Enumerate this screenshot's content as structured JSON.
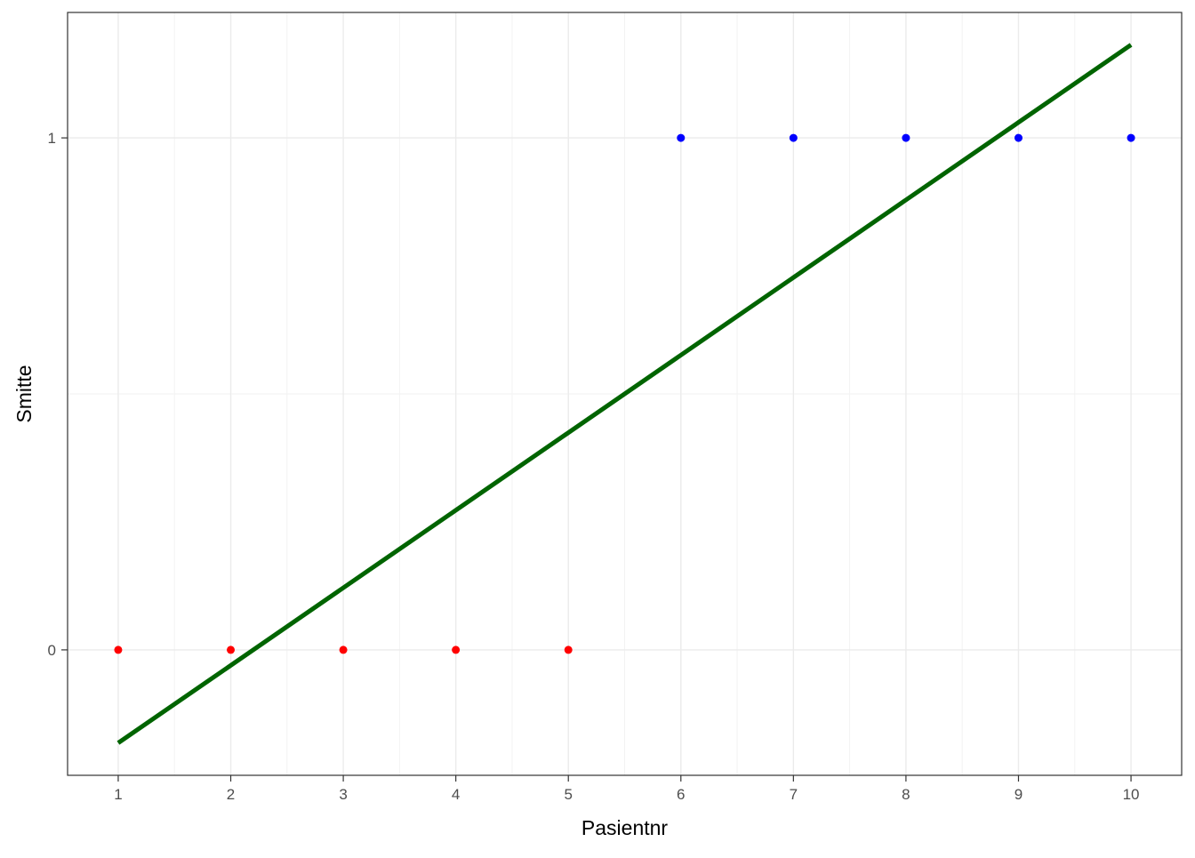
{
  "chart_data": {
    "type": "scatter",
    "title": "",
    "xlabel": "Pasientnr",
    "ylabel": "Smitte",
    "xlim": [
      0.55,
      10.45
    ],
    "ylim": [
      -0.245,
      1.245
    ],
    "x_ticks": [
      {
        "value": 1,
        "label": "1"
      },
      {
        "value": 2,
        "label": "2"
      },
      {
        "value": 3,
        "label": "3"
      },
      {
        "value": 4,
        "label": "4"
      },
      {
        "value": 5,
        "label": "5"
      },
      {
        "value": 6,
        "label": "6"
      },
      {
        "value": 7,
        "label": "7"
      },
      {
        "value": 8,
        "label": "8"
      },
      {
        "value": 9,
        "label": "9"
      },
      {
        "value": 10,
        "label": "10"
      }
    ],
    "y_ticks": [
      {
        "value": 0,
        "label": "0"
      },
      {
        "value": 1,
        "label": "1"
      }
    ],
    "grid": true,
    "legend": "none",
    "points": [
      {
        "x": 1,
        "y": 0,
        "color": "#ff0000"
      },
      {
        "x": 2,
        "y": 0,
        "color": "#ff0000"
      },
      {
        "x": 3,
        "y": 0,
        "color": "#ff0000"
      },
      {
        "x": 4,
        "y": 0,
        "color": "#ff0000"
      },
      {
        "x": 5,
        "y": 0,
        "color": "#ff0000"
      },
      {
        "x": 6,
        "y": 1,
        "color": "#0000ff"
      },
      {
        "x": 7,
        "y": 1,
        "color": "#0000ff"
      },
      {
        "x": 8,
        "y": 1,
        "color": "#0000ff"
      },
      {
        "x": 9,
        "y": 1,
        "color": "#0000ff"
      },
      {
        "x": 10,
        "y": 1,
        "color": "#0000ff"
      }
    ],
    "fit_line": {
      "type": "linear",
      "color": "#006400",
      "x": [
        1,
        10
      ],
      "y": [
        -0.1818,
        1.1818
      ]
    }
  }
}
